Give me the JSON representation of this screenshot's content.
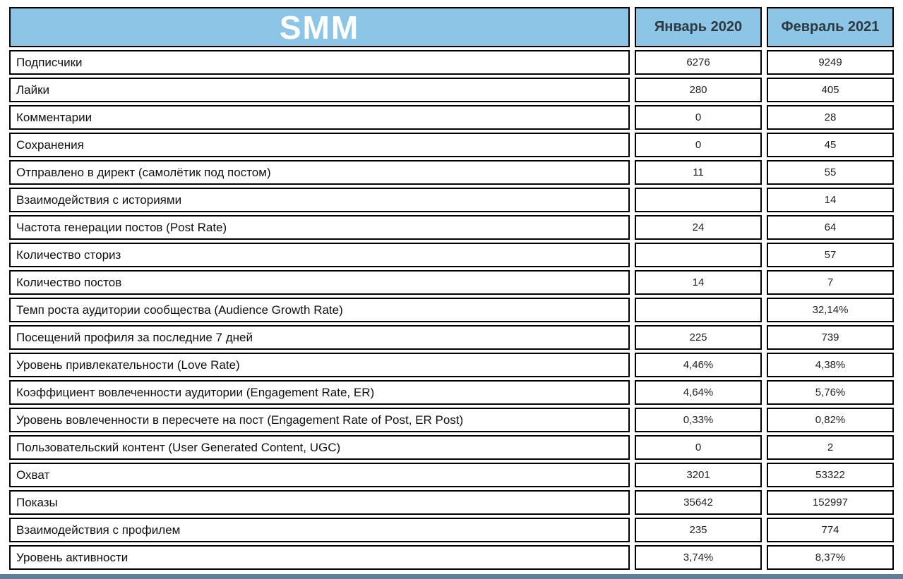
{
  "colors": {
    "header_bg": "#8cc5e6",
    "border": "#000000",
    "bottom_bar": "#5d7f9b"
  },
  "chart_data": {
    "type": "table",
    "title": "SMM",
    "columns": [
      "Январь 2020",
      "Февраль 2021"
    ],
    "rows": [
      {
        "label": "Подписчики",
        "values": [
          "6276",
          "9249"
        ]
      },
      {
        "label": "Лайки",
        "values": [
          "280",
          "405"
        ]
      },
      {
        "label": "Комментарии",
        "values": [
          "0",
          "28"
        ]
      },
      {
        "label": "Сохранения",
        "values": [
          "0",
          "45"
        ]
      },
      {
        "label": "Отправлено в директ (самолётик под постом)",
        "values": [
          "11",
          "55"
        ]
      },
      {
        "label": "Взаимодействия с историями",
        "values": [
          "",
          "14"
        ]
      },
      {
        "label": "Частота генерации постов (Post Rate)",
        "values": [
          "24",
          "64"
        ]
      },
      {
        "label": "Количество сториз",
        "values": [
          "",
          "57"
        ]
      },
      {
        "label": "Количество постов",
        "values": [
          "14",
          "7"
        ]
      },
      {
        "label": "Темп роста аудитории сообщества (Audience Growth Rate)",
        "values": [
          "",
          "32,14%"
        ]
      },
      {
        "label": "Посещений профиля за последние 7 дней",
        "values": [
          "225",
          "739"
        ]
      },
      {
        "label": "Уровень привлекательности (Love Rate)",
        "values": [
          "4,46%",
          "4,38%"
        ]
      },
      {
        "label": "Коэффициент вовлеченности аудитории (Engagement Rate, ER)",
        "values": [
          "4,64%",
          "5,76%"
        ]
      },
      {
        "label": "Уровень вовлеченности в пересчете на пост (Engagement Rate of Post, ER Post)",
        "values": [
          "0,33%",
          "0,82%"
        ]
      },
      {
        "label": "Пользовательский контент (User Generated Content, UGC)",
        "values": [
          "0",
          "2"
        ]
      },
      {
        "label": "Охват",
        "values": [
          "3201",
          "53322"
        ]
      },
      {
        "label": "Показы",
        "values": [
          "35642",
          "152997"
        ]
      },
      {
        "label": "Взаимодействия с профилем",
        "values": [
          "235",
          "774"
        ]
      },
      {
        "label": "Уровень активности",
        "values": [
          "3,74%",
          "8,37%"
        ]
      }
    ]
  }
}
